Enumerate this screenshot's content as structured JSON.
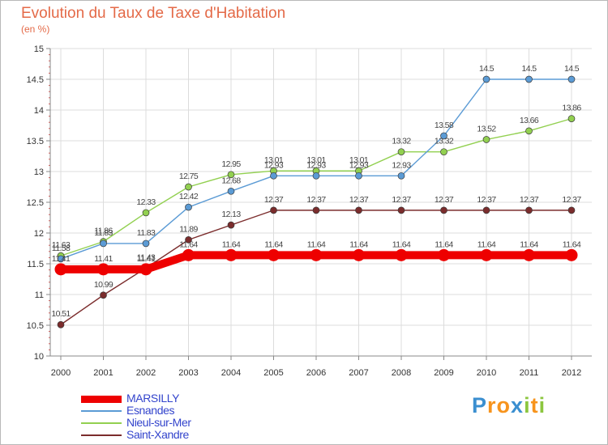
{
  "header": {
    "title": "Evolution du Taux de Taxe d'Habitation",
    "subtitle": "(en %)"
  },
  "chart_data": {
    "type": "line",
    "title": "Evolution du Taux de Taxe d'Habitation",
    "ylabel": "(en %)",
    "xlabel": "",
    "ylim": [
      10,
      15
    ],
    "yticks": [
      "10",
      "10.5",
      "11",
      "11.5",
      "12",
      "12.5",
      "13",
      "13.5",
      "14",
      "14.5",
      "15"
    ],
    "x": [
      "2000",
      "2001",
      "2002",
      "2003",
      "2004",
      "2005",
      "2006",
      "2007",
      "2008",
      "2009",
      "2010",
      "2011",
      "2012"
    ],
    "grid": true,
    "legend_position": "bottom-left",
    "series": [
      {
        "name": "MARSILLY",
        "color": "#ee0000",
        "values": [
          11.41,
          11.41,
          11.41,
          11.64,
          11.64,
          11.64,
          11.64,
          11.64,
          11.64,
          11.64,
          11.64,
          11.64,
          11.64
        ]
      },
      {
        "name": "Esnandes",
        "color": "#5b9bd5",
        "values": [
          11.58,
          11.83,
          11.83,
          12.42,
          12.68,
          12.93,
          12.93,
          12.93,
          12.93,
          13.58,
          14.5,
          14.5,
          14.5
        ]
      },
      {
        "name": "Nieul-sur-Mer",
        "color": "#92d050",
        "values": [
          11.63,
          11.86,
          12.33,
          12.75,
          12.95,
          13.01,
          13.01,
          13.01,
          13.32,
          13.32,
          13.52,
          13.66,
          13.86
        ]
      },
      {
        "name": "Saint-Xandre",
        "color": "#7b2c2c",
        "values": [
          10.51,
          10.99,
          11.43,
          11.89,
          12.13,
          12.37,
          12.37,
          12.37,
          12.37,
          12.37,
          12.37,
          12.37,
          12.37
        ]
      }
    ]
  },
  "logo": {
    "letters": [
      "P",
      "r",
      "o",
      "x",
      "i",
      "t",
      "i"
    ],
    "colors": [
      "#3b8fd0",
      "#f7941d",
      "#f7941d",
      "#3b8fd0",
      "#8cc63f",
      "#f7941d",
      "#8cc63f"
    ]
  }
}
